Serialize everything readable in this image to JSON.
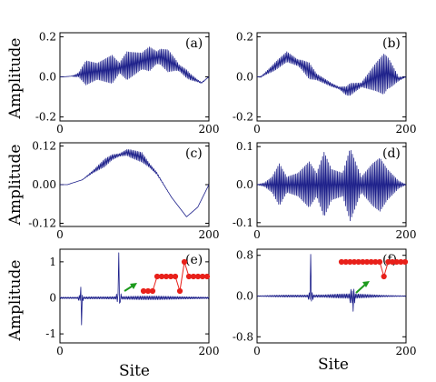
{
  "chart_data": [
    {
      "id": "a",
      "type": "line",
      "panel_label": "(a)",
      "xlim": [
        0,
        200
      ],
      "ylim": [
        -0.22,
        0.22
      ],
      "yticks": [
        -0.2,
        0.0,
        0.2
      ],
      "ytick_labels": [
        "-0.2",
        "0.0",
        "0.2"
      ],
      "xticks": [
        0,
        200
      ],
      "xtick_labels": [
        "0",
        "200"
      ],
      "envelope": {
        "site": [
          0,
          5,
          20,
          35,
          55,
          75,
          95,
          115,
          135,
          155,
          175,
          190,
          200
        ],
        "value": [
          0,
          0,
          0.005,
          0.02,
          0.03,
          0.04,
          0.06,
          0.085,
          0.1,
          0.06,
          0.0,
          -0.03,
          0
        ]
      },
      "oscillation": {
        "site": [
          0,
          15,
          25,
          35,
          50,
          70,
          80,
          90,
          110,
          120,
          130,
          145,
          160,
          170,
          185,
          200
        ],
        "value": [
          0,
          0,
          0.01,
          0.06,
          0.04,
          0.07,
          0.025,
          0.07,
          0.04,
          0.06,
          0.03,
          0.055,
          0.015,
          0.02,
          0.005,
          0
        ]
      }
    },
    {
      "id": "b",
      "type": "line",
      "panel_label": "(b)",
      "xlim": [
        0,
        200
      ],
      "ylim": [
        -0.22,
        0.22
      ],
      "yticks": [
        -0.2,
        0.0,
        0.2
      ],
      "ytick_labels": [
        "-0.2",
        "0.0",
        "0.2"
      ],
      "xticks": [
        0,
        200
      ],
      "xtick_labels": [
        "0",
        "200"
      ],
      "envelope": {
        "site": [
          0,
          5,
          20,
          40,
          60,
          80,
          100,
          120,
          140,
          160,
          175,
          190,
          200
        ],
        "value": [
          0,
          0,
          0.04,
          0.1,
          0.06,
          0.0,
          -0.04,
          -0.07,
          -0.04,
          0.0,
          0.02,
          -0.01,
          0
        ]
      },
      "oscillation": {
        "site": [
          0,
          10,
          25,
          40,
          55,
          70,
          80,
          95,
          110,
          125,
          140,
          155,
          170,
          180,
          190,
          200
        ],
        "value": [
          0,
          0.005,
          0.02,
          0.025,
          0.015,
          0.04,
          0.015,
          0.01,
          0.005,
          0.03,
          0.01,
          0.055,
          0.1,
          0.06,
          0.01,
          0
        ]
      }
    },
    {
      "id": "c",
      "type": "line",
      "panel_label": "(c)",
      "xlim": [
        0,
        200
      ],
      "ylim": [
        -0.13,
        0.13
      ],
      "yticks": [
        -0.12,
        0.0,
        0.12
      ],
      "ytick_labels": [
        "-0.12",
        "0.00",
        "0.12"
      ],
      "xticks": [
        0,
        200
      ],
      "xtick_labels": [
        "0",
        "200"
      ],
      "envelope": {
        "site": [
          0,
          10,
          30,
          50,
          70,
          90,
          110,
          130,
          150,
          170,
          185,
          200
        ],
        "value": [
          0,
          0,
          0.015,
          0.05,
          0.085,
          0.1,
          0.085,
          0.035,
          -0.04,
          -0.1,
          -0.07,
          0
        ]
      },
      "oscillation": {
        "site": [
          0,
          30,
          45,
          60,
          80,
          95,
          110,
          120,
          135,
          150,
          200
        ],
        "value": [
          0,
          0,
          0.004,
          0.012,
          0.004,
          0.012,
          0.015,
          0.006,
          0.002,
          0,
          0
        ]
      }
    },
    {
      "id": "d",
      "type": "line",
      "panel_label": "(d)",
      "xlim": [
        0,
        200
      ],
      "ylim": [
        -0.11,
        0.11
      ],
      "yticks": [
        -0.1,
        0.0,
        0.1
      ],
      "ytick_labels": [
        "-0.1",
        "0.0",
        "0.1"
      ],
      "xticks": [
        0,
        200
      ],
      "xtick_labels": [
        "0",
        "200"
      ],
      "envelope": {
        "site": [
          0,
          200
        ],
        "value": [
          0,
          0
        ]
      },
      "oscillation": {
        "site": [
          0,
          10,
          20,
          30,
          40,
          55,
          70,
          80,
          90,
          100,
          115,
          125,
          140,
          155,
          165,
          175,
          190,
          200
        ],
        "value": [
          0,
          0.005,
          0.02,
          0.055,
          0.02,
          0.03,
          0.06,
          0.03,
          0.085,
          0.04,
          0.03,
          0.095,
          0.02,
          0.055,
          0.07,
          0.04,
          0.01,
          0
        ]
      }
    },
    {
      "id": "e",
      "type": "line",
      "panel_label": "(e)",
      "xlim": [
        0,
        200
      ],
      "ylim": [
        -1.25,
        1.35
      ],
      "yticks": [
        -1,
        0,
        1
      ],
      "ytick_labels": [
        "-1",
        "0",
        "1"
      ],
      "xticks": [
        0,
        200
      ],
      "xtick_labels": [
        "0",
        "200"
      ],
      "envelope": {
        "site": [
          0,
          200
        ],
        "value": [
          0,
          0
        ]
      },
      "oscillation": {
        "site": [
          0,
          20,
          40,
          60,
          90,
          110,
          130,
          150,
          170,
          200
        ],
        "value": [
          0.02,
          0.02,
          0.03,
          0.03,
          0.04,
          0.05,
          0.05,
          0.04,
          0.03,
          0.02
        ]
      },
      "spikes": [
        {
          "site": 28,
          "pos": 0.3,
          "neg": -0.75
        },
        {
          "site": 79,
          "pos": 1.25,
          "neg": -0.15
        }
      ]
    },
    {
      "id": "f",
      "type": "line",
      "panel_label": "(f)",
      "xlim": [
        0,
        200
      ],
      "ylim": [
        -0.92,
        0.92
      ],
      "yticks": [
        -0.8,
        0.0,
        0.8
      ],
      "ytick_labels": [
        "-0.8",
        "0.0",
        "0.8"
      ],
      "xticks": [
        0,
        200
      ],
      "xtick_labels": [
        "0",
        "200"
      ],
      "envelope": {
        "site": [
          0,
          200
        ],
        "value": [
          0,
          0
        ]
      },
      "oscillation": {
        "site": [
          0,
          20,
          40,
          60,
          90,
          110,
          130,
          150,
          170,
          200
        ],
        "value": [
          0.005,
          0.015,
          0.02,
          0.02,
          0.025,
          0.04,
          0.045,
          0.03,
          0.015,
          0.005
        ]
      },
      "spikes": [
        {
          "site": 72,
          "pos": 0.82,
          "neg": -0.1
        },
        {
          "site": 128,
          "pos": 0.1,
          "neg": -0.3
        }
      ]
    }
  ],
  "insets": [
    {
      "panel": "e",
      "dot_values": [
        0,
        0,
        0,
        0.5,
        0.5,
        0.5,
        0.5,
        0.5,
        0,
        1,
        0.5,
        0.5,
        0.5,
        0.5,
        0.5
      ]
    },
    {
      "panel": "f",
      "dot_values": [
        0.5,
        0.5,
        0.5,
        0.5,
        0.5,
        0.5,
        0.5,
        0.5,
        0.5,
        0.5,
        0,
        0.5,
        0.5,
        0.5,
        0.5,
        0.5
      ]
    }
  ],
  "axis_labels": {
    "ylabel": "Amplitude",
    "xlabel": "Site"
  }
}
